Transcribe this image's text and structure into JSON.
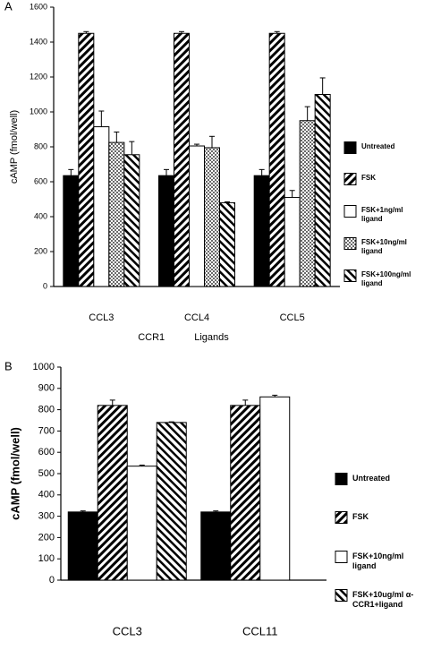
{
  "chart_data": [
    {
      "type": "bar",
      "panel_label": "A",
      "y_label": "cAMP (fmol/well)",
      "x_label": "CCR1 Ligands",
      "categories": [
        "CCL3",
        "CCL4",
        "CCL5"
      ],
      "ylim": [
        0,
        1600
      ],
      "yticks": [
        0,
        200,
        400,
        600,
        800,
        1000,
        1200,
        1400,
        1600
      ],
      "grid": false,
      "series": [
        {
          "name": "Untreated",
          "color": "#000000",
          "pattern": "solid",
          "values": [
            635,
            635,
            635
          ],
          "errors": [
            35,
            35,
            35
          ]
        },
        {
          "name": "FSK",
          "color": "#000000",
          "pattern": "hatch",
          "values": [
            1450,
            1450,
            1450
          ],
          "errors": [
            10,
            10,
            10
          ]
        },
        {
          "name": "FSK+1ng/ml ligand",
          "color": "#ffffff",
          "pattern": "solid",
          "values": [
            915,
            805,
            510
          ],
          "errors": [
            90,
            10,
            40
          ]
        },
        {
          "name": "FSK+10ng/ml ligand",
          "color": "#000000",
          "pattern": "dots",
          "values": [
            825,
            795,
            950
          ],
          "errors": [
            60,
            65,
            80
          ]
        },
        {
          "name": "FSK+100ng/ml ligand",
          "color": "#000000",
          "pattern": "backhatch",
          "values": [
            755,
            480,
            1100
          ],
          "errors": [
            75,
            5,
            95
          ]
        }
      ]
    },
    {
      "type": "bar",
      "panel_label": "B",
      "y_label": "cAMP (fmol/well)",
      "categories": [
        "CCL3",
        "CCL11"
      ],
      "ylim": [
        0,
        1000
      ],
      "yticks": [
        0,
        100,
        200,
        300,
        400,
        500,
        600,
        700,
        800,
        900,
        1000
      ],
      "grid": false,
      "series": [
        {
          "name": "Untreated",
          "color": "#000000",
          "pattern": "solid",
          "values": [
            320,
            320
          ],
          "errors": [
            5,
            5
          ]
        },
        {
          "name": "FSK",
          "color": "#000000",
          "pattern": "hatch",
          "values": [
            820,
            820
          ],
          "errors": [
            25,
            25
          ]
        },
        {
          "name": "FSK+10ng/ml ligand",
          "color": "#ffffff",
          "pattern": "solid",
          "values": [
            535,
            860
          ],
          "errors": [
            5,
            8
          ]
        },
        {
          "name": "FSK+10ug/ml α-CCR1+ligand",
          "color": "#000000",
          "pattern": "backhatch",
          "values": [
            740,
            null
          ],
          "errors": [
            3,
            null
          ]
        }
      ]
    }
  ]
}
